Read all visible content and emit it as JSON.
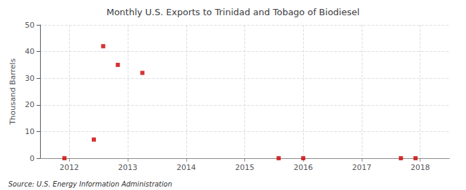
{
  "chart_data": {
    "type": "scatter",
    "title": "Monthly U.S. Exports to Trinidad and Tobago of Biodiesel",
    "ylabel": "Thousand Barrels",
    "source": "Source: U.S. Energy Information Administration",
    "x": [
      2011.917,
      2012.42,
      2012.58,
      2012.83,
      2013.25,
      2015.58,
      2016.0,
      2017.67,
      2017.92
    ],
    "values": [
      0,
      7,
      42,
      35,
      32,
      0,
      0,
      0,
      0
    ],
    "color": "#cc0000",
    "marker": "square",
    "xlim": [
      2011.5,
      2018.5
    ],
    "xticks": [
      2012,
      2013,
      2014,
      2015,
      2016,
      2017,
      2018
    ],
    "ylim": [
      0,
      50
    ],
    "yticks": [
      0,
      10,
      20,
      30,
      40,
      50
    ],
    "grid": true
  }
}
